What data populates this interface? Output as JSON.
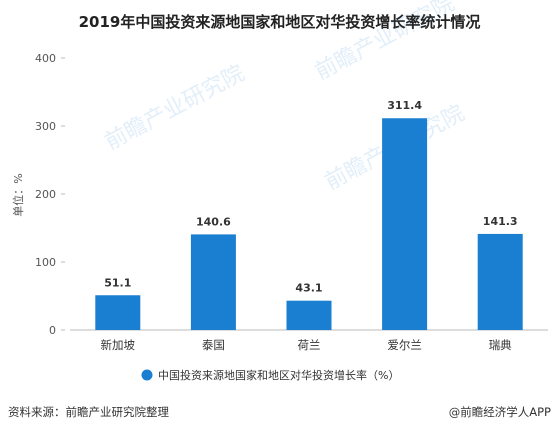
{
  "chart_data": {
    "type": "bar",
    "title": "2019年中国投资来源地国家和地区对华投资增长率统计情况",
    "ylabel": "单位：%",
    "xlabel": "",
    "categories": [
      "新加坡",
      "泰国",
      "荷兰",
      "爱尔兰",
      "瑞典"
    ],
    "series": [
      {
        "name": "中国投资来源地国家和地区对华投资增长率（%）",
        "values": [
          51.1,
          140.6,
          43.1,
          311.4,
          141.3
        ]
      }
    ],
    "ylim": [
      0,
      400
    ],
    "yticks": [
      0,
      100,
      200,
      300,
      400
    ],
    "grid": false,
    "legend_position": "bottom",
    "bar_color": "#1a7ed1"
  },
  "footer": {
    "source": "资料来源：前瞻产业研究院整理",
    "brand": "@前瞻经济学人APP"
  },
  "watermark": {
    "text": "前瞻产业研究院"
  }
}
